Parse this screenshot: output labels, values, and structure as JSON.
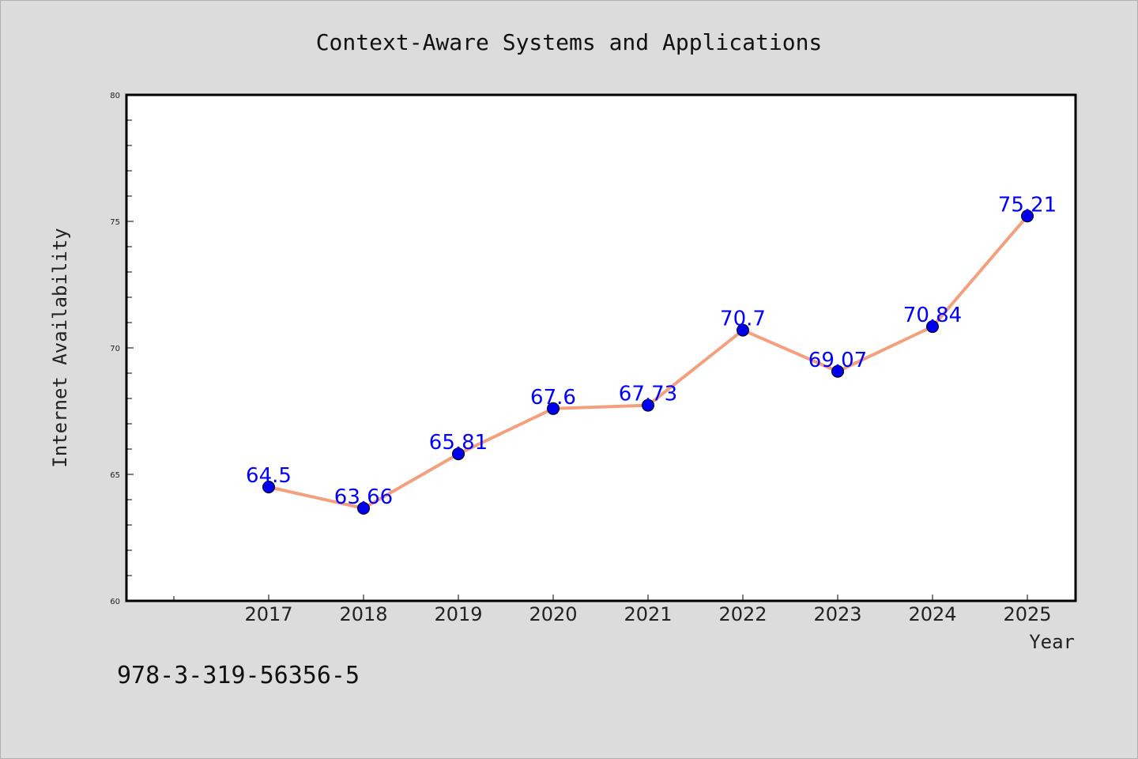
{
  "chart_data": {
    "type": "line",
    "title": "Context-Aware Systems and Applications",
    "xlabel": "Year",
    "ylabel": "Internet Availability",
    "categories": [
      "2017",
      "2018",
      "2019",
      "2020",
      "2021",
      "2022",
      "2023",
      "2024",
      "2025"
    ],
    "series": [
      {
        "values": [
          64.5,
          63.66,
          65.81,
          67.6,
          67.73,
          70.7,
          69.07,
          70.84,
          75.21
        ],
        "labels": [
          "64.5",
          "63.66",
          "65.81",
          "67.6",
          "67.73",
          "70.7",
          "69.07",
          "70.84",
          "75.21"
        ],
        "line_color": "#f4a07e",
        "marker_color": "#0000ee"
      }
    ],
    "ylim": [
      60,
      80
    ],
    "yticks": [
      60,
      65,
      70,
      75,
      80
    ],
    "grid": false,
    "legend": "none"
  },
  "footer": {
    "isbn": "978-3-319-56356-5"
  },
  "colors": {
    "background": "#dcdcdc",
    "plot_area": "#ffffff",
    "data_label": "#0000ff"
  }
}
